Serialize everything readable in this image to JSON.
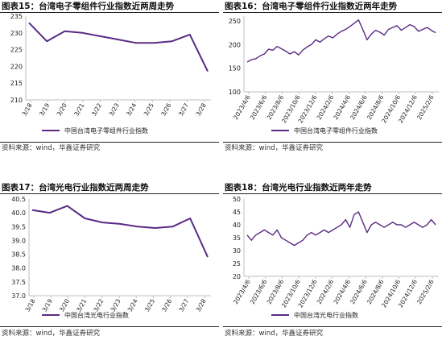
{
  "colors": {
    "line": "#5a2a84",
    "axis": "#bfbfbf",
    "text": "#333333"
  },
  "chart_data": [
    {
      "panel": "p1",
      "type": "line",
      "title": "图表15：台湾电子零组件行业指数近两周走势",
      "source": "资料来源：wind，华鑫证券研究",
      "x": [
        "3/18",
        "3/19",
        "3/20",
        "3/21",
        "3/22",
        "3/23",
        "3/24",
        "3/25",
        "3/26",
        "3/27",
        "3/28"
      ],
      "series": [
        {
          "name": "中国台湾电子零组件行业指数",
          "values": [
            233,
            227.5,
            230.5,
            230,
            229,
            228,
            227,
            227,
            227.5,
            229.5,
            218.5
          ]
        }
      ],
      "ylim": [
        210,
        235
      ],
      "yticks": [
        210,
        215,
        220,
        225,
        230,
        235
      ],
      "legend": "bottom"
    },
    {
      "panel": "p2",
      "type": "line",
      "title": "图表16：台湾电子零组件行业指数近两年走势",
      "source": "资料来源：wind，华鑫证券研究",
      "x_labels": [
        "2023/4/6",
        "2023/6/6",
        "2023/8/6",
        "2023/10/6",
        "2023/12/6",
        "2024/2/6",
        "2024/4/6",
        "2024/6/6",
        "2024/8/6",
        "2024/10/6",
        "2024/12/6",
        "2025/2/6"
      ],
      "series": [
        {
          "name": "中国台湾电子零组件行业指数",
          "values": [
            163,
            168,
            170,
            176,
            180,
            190,
            188,
            196,
            191,
            186,
            180,
            185,
            178,
            188,
            195,
            200,
            210,
            205,
            212,
            218,
            214,
            222,
            228,
            232,
            238,
            245,
            252,
            232,
            210,
            222,
            230,
            226,
            220,
            232,
            236,
            240,
            230,
            236,
            242,
            238,
            228,
            232,
            236,
            230,
            225
          ]
        }
      ],
      "ylim": [
        100,
        260
      ],
      "yticks": [
        100,
        150,
        200,
        250
      ],
      "legend": "bottom"
    },
    {
      "panel": "p3",
      "type": "line",
      "title": "图表17：台湾光电行业指数近两周走势",
      "source": "资料来源：wind，华鑫证券研究",
      "x": [
        "3/18",
        "3/19",
        "3/20",
        "3/21",
        "3/22",
        "3/23",
        "3/24",
        "3/25",
        "3/26",
        "3/27",
        "3/28"
      ],
      "series": [
        {
          "name": "中国台湾光电行业指数",
          "values": [
            40.1,
            40.0,
            40.25,
            39.8,
            39.65,
            39.6,
            39.5,
            39.45,
            39.5,
            39.8,
            38.4
          ]
        }
      ],
      "ylim": [
        37.0,
        40.5
      ],
      "yticks": [
        37.0,
        37.5,
        38.0,
        38.5,
        39.0,
        39.5,
        40.0,
        40.5
      ],
      "legend": "bottom"
    },
    {
      "panel": "p4",
      "type": "line",
      "title": "图表18：台湾光电行业指数近两年走势",
      "source": "资料来源：wind，华鑫证券研究",
      "x_labels": [
        "2023/4/6",
        "2023/6/6",
        "2023/8/6",
        "2023/10/6",
        "2023/12/6",
        "2024/2/6",
        "2024/4/6",
        "2024/6/6",
        "2024/8/6",
        "2024/10/6",
        "2024/12/6",
        "2025/2/6"
      ],
      "series": [
        {
          "name": "中国台湾光电行业指数",
          "values": [
            36,
            34,
            36,
            37,
            38,
            37,
            36,
            38,
            35,
            34,
            33,
            32,
            33,
            34,
            36,
            37,
            36,
            37,
            38,
            37,
            38,
            39,
            40,
            42,
            39,
            44,
            45,
            41,
            37,
            40,
            41,
            40,
            39,
            40,
            41,
            40,
            40,
            39,
            40,
            41,
            40,
            39,
            40,
            42,
            40
          ]
        }
      ],
      "ylim": [
        20,
        50
      ],
      "yticks": [
        20,
        25,
        30,
        35,
        40,
        45,
        50
      ],
      "legend": "bottom"
    }
  ]
}
